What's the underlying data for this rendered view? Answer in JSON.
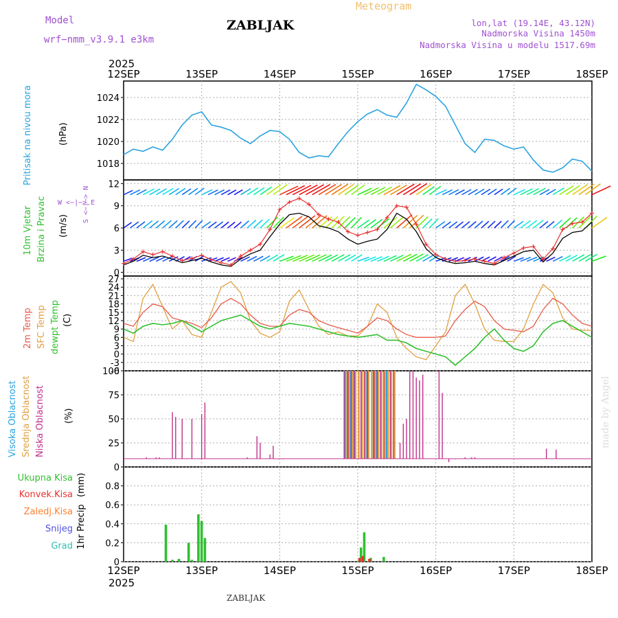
{
  "header": {
    "model_label": "Model",
    "model_name": "wrf−nmm_v3.9.1  e3km",
    "station": "ZABLJAK",
    "meteogram_title": "Meteogram",
    "coords": "lon,lat (19.14E, 43.12N)",
    "elevation": "Nadmorska Visina 1450m",
    "model_elevation": "Nadmorska Visina u modelu 1517.69m",
    "year_top": "2025",
    "year_bottom": "2025",
    "footer_station": "ZABLJAK",
    "credit": "made by Angel"
  },
  "colors": {
    "pressure": "#29a3e0",
    "wind_speed": "#000000",
    "wind_gust": "#e83030",
    "temp2m": "#e85a4a",
    "sfc_temp": "#e0a040",
    "dewpt": "#30c030",
    "cloud_high": "#29a3e0",
    "cloud_mid": "#e0a040",
    "cloud_low": "#c0308a",
    "precip_total": "#30c030",
    "precip_conv": "#e83030",
    "precip_ice": "#ff8030",
    "precip_snow": "#5050e0",
    "precip_grad": "#30c0b0",
    "grid": "#aaaaaa",
    "title_purple": "#a050d0",
    "meteogram_orange": "#f0c070"
  },
  "chart_data": {
    "type": "meteogram",
    "x_ticks": [
      "12SEP",
      "13SEP",
      "14SEP",
      "15SEP",
      "16SEP",
      "17SEP",
      "18SEP"
    ],
    "x_unit": "hours since 12SEP 00Z",
    "x_range": [
      0,
      144
    ],
    "panels": [
      {
        "id": "pressure",
        "type": "line",
        "ylabel": "Pritisak na nivou mora",
        "unit": "(hPa)",
        "ylim": [
          1016.5,
          1025.5
        ],
        "yticks": [
          1018,
          1020,
          1022,
          1024
        ],
        "series": [
          {
            "name": "Pritisak na nivou mora",
            "x": [
              0,
              3,
              6,
              9,
              12,
              15,
              18,
              21,
              24,
              27,
              30,
              33,
              36,
              39,
              42,
              45,
              48,
              51,
              54,
              57,
              60,
              63,
              66,
              69,
              72,
              75,
              78,
              81,
              84,
              87,
              90,
              93,
              96,
              99,
              102,
              105,
              108,
              111,
              114,
              117,
              120,
              123,
              126,
              129,
              132,
              135,
              138,
              141,
              144
            ],
            "values": [
              1018.8,
              1019.3,
              1019.1,
              1019.5,
              1019.2,
              1020.2,
              1021.5,
              1022.4,
              1022.7,
              1021.5,
              1021.3,
              1021.0,
              1020.3,
              1019.8,
              1020.5,
              1021.0,
              1020.9,
              1020.2,
              1019.0,
              1018.5,
              1018.7,
              1018.6,
              1019.8,
              1020.9,
              1021.8,
              1022.5,
              1022.9,
              1022.4,
              1022.2,
              1023.5,
              1025.2,
              1024.7,
              1024.1,
              1023.2,
              1021.5,
              1019.8,
              1019.0,
              1020.2,
              1020.1,
              1019.6,
              1019.3,
              1019.5,
              1018.3,
              1017.4,
              1017.2,
              1017.6,
              1018.4,
              1018.2,
              1017.3
            ]
          }
        ]
      },
      {
        "id": "wind",
        "type": "line",
        "ylabel_1": "10m Vjetar",
        "ylabel_2": "Brzina i Pravac",
        "unit": "(m/s)",
        "ylim": [
          -0.5,
          12.5
        ],
        "yticks": [
          0,
          3,
          6,
          9,
          12
        ],
        "dir_key": "W <−|−> E",
        "dir_key_ns": "S <−|−> N",
        "barb_rows": [
          {
            "level": "near surface",
            "y_value": 1.5
          },
          {
            "level": "mid",
            "y_value": 6
          },
          {
            "level": "upper",
            "y_value": 10.5
          }
        ],
        "series": [
          {
            "name": "Brzina vjetra",
            "x": [
              0,
              3,
              6,
              9,
              12,
              15,
              18,
              21,
              24,
              27,
              30,
              33,
              36,
              39,
              42,
              45,
              48,
              51,
              54,
              57,
              60,
              63,
              66,
              69,
              72,
              75,
              78,
              81,
              84,
              87,
              90,
              93,
              96,
              99,
              102,
              105,
              108,
              111,
              114,
              117,
              120,
              123,
              126,
              129,
              132,
              135,
              138,
              141,
              144
            ],
            "values": [
              1.0,
              1.5,
              2.3,
              2.0,
              2.2,
              1.8,
              1.3,
              1.6,
              1.9,
              1.4,
              1.0,
              0.8,
              1.8,
              2.5,
              3.0,
              4.8,
              6.5,
              7.8,
              8.0,
              7.5,
              6.3,
              6.0,
              5.5,
              4.5,
              3.8,
              4.2,
              4.5,
              5.8,
              8.0,
              7.2,
              5.5,
              3.2,
              2.0,
              1.5,
              1.2,
              1.3,
              1.5,
              1.2,
              1.0,
              1.6,
              2.2,
              2.8,
              3.0,
              1.4,
              2.6,
              4.6,
              5.4,
              5.6,
              6.8
            ]
          },
          {
            "name": "Udari vjetra",
            "x": [
              0,
              3,
              6,
              9,
              12,
              15,
              18,
              21,
              24,
              27,
              30,
              33,
              36,
              39,
              42,
              45,
              48,
              51,
              54,
              57,
              60,
              63,
              66,
              69,
              72,
              75,
              78,
              81,
              84,
              87,
              90,
              93,
              96,
              99,
              102,
              105,
              108,
              111,
              114,
              117,
              120,
              123,
              126,
              129,
              132,
              135,
              138,
              141,
              144
            ],
            "values": [
              1.2,
              1.8,
              2.8,
              2.4,
              2.8,
              2.2,
              1.6,
              1.9,
              2.3,
              1.7,
              1.3,
              1.0,
              2.2,
              3.0,
              3.8,
              5.8,
              8.5,
              9.5,
              10.0,
              9.2,
              7.8,
              7.2,
              6.8,
              5.5,
              5.0,
              5.4,
              5.8,
              7.4,
              9.0,
              8.8,
              6.5,
              3.8,
              2.4,
              1.8,
              1.5,
              1.6,
              1.8,
              1.5,
              1.2,
              2.0,
              2.6,
              3.3,
              3.5,
              1.8,
              3.2,
              5.8,
              6.6,
              6.8,
              8.0
            ]
          }
        ]
      },
      {
        "id": "temperature",
        "type": "line",
        "ylabel_1": "2m Temp",
        "ylabel_2": "SFC Temp",
        "ylabel_3": "dewpt Temp",
        "unit": "(C)",
        "ylim": [
          -6,
          28
        ],
        "yticks": [
          -6,
          -3,
          0,
          3,
          6,
          9,
          12,
          15,
          18,
          21,
          24,
          27
        ],
        "series": [
          {
            "name": "2m Temp",
            "x": [
              0,
              3,
              6,
              9,
              12,
              15,
              18,
              21,
              24,
              27,
              30,
              33,
              36,
              39,
              42,
              45,
              48,
              51,
              54,
              57,
              60,
              63,
              66,
              69,
              72,
              75,
              78,
              81,
              84,
              87,
              90,
              93,
              96,
              99,
              102,
              105,
              108,
              111,
              114,
              117,
              120,
              123,
              126,
              129,
              132,
              135,
              138,
              141,
              144
            ],
            "values": [
              11,
              10,
              15,
              18,
              17,
              13,
              12,
              11,
              9.5,
              13,
              18,
              20,
              18,
              14,
              11,
              10,
              10,
              14,
              16,
              15,
              12,
              10.5,
              9.5,
              8.5,
              7.5,
              10,
              13,
              12,
              9,
              7,
              6,
              6,
              6,
              6.5,
              12,
              16,
              19,
              17,
              12,
              9,
              8.5,
              8,
              10,
              16,
              20,
              18,
              14,
              11,
              10
            ]
          },
          {
            "name": "SFC Temp",
            "x": [
              0,
              3,
              6,
              9,
              12,
              15,
              18,
              21,
              24,
              27,
              30,
              33,
              36,
              39,
              42,
              45,
              48,
              51,
              54,
              57,
              60,
              63,
              66,
              69,
              72,
              75,
              78,
              81,
              84,
              87,
              90,
              93,
              96,
              99,
              102,
              105,
              108,
              111,
              114,
              117,
              120,
              123,
              126,
              129,
              132,
              135,
              138,
              141,
              144
            ],
            "values": [
              6,
              4.5,
              20,
              25,
              17,
              9,
              12,
              7,
              6,
              15,
              24,
              26,
              22,
              12,
              7.5,
              6,
              8,
              19,
              23,
              16,
              10,
              7,
              8,
              6.5,
              6.5,
              10,
              18,
              15,
              6,
              2,
              -1,
              -2,
              3,
              8,
              21,
              25,
              18,
              9,
              5,
              4.5,
              4.5,
              9,
              18,
              25,
              22,
              13,
              9,
              8.5,
              8.5
            ]
          },
          {
            "name": "dewpt Temp",
            "x": [
              0,
              3,
              6,
              9,
              12,
              15,
              18,
              21,
              24,
              27,
              30,
              33,
              36,
              39,
              42,
              45,
              48,
              51,
              54,
              57,
              60,
              63,
              66,
              69,
              72,
              75,
              78,
              81,
              84,
              87,
              90,
              93,
              96,
              99,
              102,
              105,
              108,
              111,
              114,
              117,
              120,
              123,
              126,
              129,
              132,
              135,
              138,
              141,
              144
            ],
            "values": [
              9,
              7.5,
              10,
              11,
              10.5,
              11,
              12,
              10,
              8,
              10,
              12,
              13,
              14,
              12,
              10,
              9,
              10,
              11,
              10.5,
              10,
              9,
              8,
              7,
              6.5,
              6,
              6.5,
              7,
              5,
              5,
              4,
              2,
              1,
              0,
              -1,
              -4,
              -1,
              2,
              6,
              9,
              5,
              2,
              1,
              3,
              8,
              11,
              12,
              10,
              8,
              6
            ]
          }
        ]
      },
      {
        "id": "clouds",
        "type": "bar",
        "ylabel_1": "Visoka Oblacnost",
        "ylabel_2": "Srednja Oblacnost",
        "ylabel_3": "Niska Oblacnost",
        "unit": "(%)",
        "ylim": [
          0,
          100
        ],
        "yticks": [
          0,
          25,
          50,
          75,
          100
        ],
        "series": [
          {
            "name": "Niska Oblacnost",
            "x": [
              7,
              10,
              11,
              15,
              16,
              18,
              21,
              24,
              25,
              38,
              41,
              42,
              45,
              46,
              49,
              68,
              69,
              70,
              71,
              73,
              74,
              75,
              77,
              78,
              79,
              80,
              82,
              83,
              85,
              86,
              87,
              88,
              89,
              90,
              91,
              92,
              97,
              98,
              100,
              102,
              104,
              105,
              107,
              108,
              130,
              133
            ],
            "values": [
              10,
              10,
              10,
              57,
              52,
              50,
              50,
              55,
              67,
              10,
              32,
              25,
              13,
              22,
              8,
              100,
              100,
              100,
              100,
              100,
              100,
              100,
              100,
              100,
              100,
              100,
              100,
              100,
              25,
              45,
              50,
              100,
              100,
              93,
              90,
              96,
              100,
              77,
              5,
              8,
              9,
              10,
              10,
              10,
              19,
              18
            ]
          },
          {
            "name": "Srednja Oblacnost",
            "x": [
              68,
              69,
              70,
              71,
              72,
              73,
              74,
              75,
              76,
              77,
              78,
              79,
              80,
              81,
              82,
              83
            ],
            "values": [
              100,
              100,
              100,
              100,
              100,
              100,
              100,
              100,
              100,
              100,
              100,
              100,
              100,
              100,
              100,
              100
            ]
          },
          {
            "name": "Visoka Oblacnost",
            "x": [
              68,
              69,
              70,
              71,
              75,
              77,
              78,
              81
            ],
            "values": [
              100,
              100,
              100,
              100,
              100,
              100,
              100,
              100
            ]
          }
        ]
      },
      {
        "id": "precip",
        "type": "bar",
        "ylabel_1": "1hr Precip",
        "unit": "(mm)",
        "ylim": [
          0,
          1.0
        ],
        "yticks": [
          0,
          0.2,
          0.4,
          0.6,
          0.8
        ],
        "legend": [
          "Ukupna Kisa",
          "Konvek.Kisa",
          "Zaledj.Kisa",
          "Snijeg",
          "Grad"
        ],
        "series": [
          {
            "name": "Ukupna Kisa",
            "x": [
              13,
              15,
              17,
              17,
              20,
              21,
              23,
              24,
              25,
              72,
              73,
              74,
              76,
              80
            ],
            "values": [
              0.39,
              0.02,
              0.02,
              0.03,
              0.2,
              0.02,
              0.5,
              0.43,
              0.25,
              0.01,
              0.15,
              0.31,
              0.04,
              0.05
            ]
          },
          {
            "name": "Konvek.Kisa",
            "x": [
              73,
              74,
              76
            ],
            "values": [
              0.04,
              0.06,
              0.03
            ]
          }
        ]
      }
    ]
  }
}
